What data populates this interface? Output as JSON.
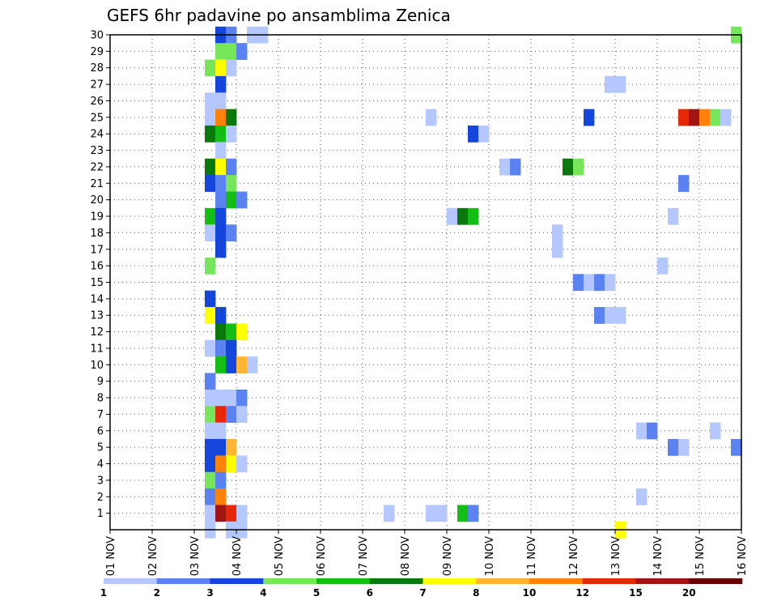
{
  "chart_data": {
    "type": "heatmap",
    "title": "GEFS 6hr padavine po ansamblima Zenica",
    "x_labels": [
      "01 NOV",
      "02 NOV",
      "03 NOV",
      "04 NOV",
      "05 NOV",
      "06 NOV",
      "07 NOV",
      "08 NOV",
      "09 NOV",
      "10 NOV",
      "11 NOV",
      "12 NOV",
      "13 NOV",
      "14 NOV",
      "15 NOV",
      "16 NOV"
    ],
    "y_labels": [
      "1",
      "2",
      "3",
      "4",
      "5",
      "6",
      "7",
      "8",
      "9",
      "10",
      "11",
      "12",
      "13",
      "14",
      "15",
      "16",
      "17",
      "18",
      "19",
      "20",
      "21",
      "22",
      "23",
      "24",
      "25",
      "26",
      "27",
      "28",
      "29",
      "30"
    ],
    "time_step_hours": 6,
    "ylim": [
      0,
      30
    ],
    "grid": true,
    "colorbar": {
      "bounds": [
        "1",
        "2",
        "3",
        "4",
        "5",
        "6",
        "7",
        "8",
        "10",
        "12",
        "15",
        "20"
      ],
      "colors": [
        "#b4c8ff",
        "#5a82f0",
        "#1446dc",
        "#78e65a",
        "#14be14",
        "#0a780a",
        "#ffff00",
        "#ffb432",
        "#ff820a",
        "#e6280a",
        "#a01414",
        "#640000"
      ]
    },
    "cells_format": "[member, step, class]; step = 6h periods since 01 NOV 00z; class = colorbar index",
    "cells": [
      [
        30,
        10,
        2
      ],
      [
        30,
        11,
        1
      ],
      [
        30,
        13,
        0
      ],
      [
        30,
        14,
        0
      ],
      [
        30,
        59,
        3
      ],
      [
        29,
        11,
        3
      ],
      [
        29,
        10,
        3
      ],
      [
        29,
        12,
        1
      ],
      [
        28,
        9,
        3
      ],
      [
        28,
        10,
        6
      ],
      [
        28,
        11,
        0
      ],
      [
        27,
        10,
        2
      ],
      [
        27,
        47,
        0
      ],
      [
        27,
        48,
        0
      ],
      [
        26,
        9,
        0
      ],
      [
        26,
        10,
        0
      ],
      [
        25,
        9,
        0
      ],
      [
        25,
        10,
        8
      ],
      [
        25,
        11,
        5
      ],
      [
        25,
        30,
        0
      ],
      [
        25,
        45,
        2
      ],
      [
        25,
        54,
        9
      ],
      [
        25,
        55,
        10
      ],
      [
        25,
        56,
        8
      ],
      [
        25,
        57,
        3
      ],
      [
        25,
        58,
        0
      ],
      [
        24,
        9,
        5
      ],
      [
        24,
        10,
        4
      ],
      [
        24,
        11,
        0
      ],
      [
        24,
        34,
        2
      ],
      [
        24,
        35,
        0
      ],
      [
        23,
        10,
        0
      ],
      [
        22,
        9,
        5
      ],
      [
        22,
        10,
        6
      ],
      [
        22,
        11,
        1
      ],
      [
        22,
        37,
        0
      ],
      [
        22,
        38,
        1
      ],
      [
        22,
        43,
        5
      ],
      [
        22,
        44,
        3
      ],
      [
        21,
        9,
        2
      ],
      [
        21,
        10,
        1
      ],
      [
        21,
        11,
        3
      ],
      [
        21,
        54,
        1
      ],
      [
        20,
        10,
        1
      ],
      [
        20,
        11,
        4
      ],
      [
        20,
        12,
        1
      ],
      [
        19,
        9,
        4
      ],
      [
        19,
        10,
        2
      ],
      [
        19,
        32,
        0
      ],
      [
        19,
        33,
        5
      ],
      [
        19,
        34,
        4
      ],
      [
        19,
        53,
        0
      ],
      [
        18,
        9,
        0
      ],
      [
        18,
        10,
        2
      ],
      [
        18,
        11,
        1
      ],
      [
        18,
        42,
        0
      ],
      [
        17,
        10,
        2
      ],
      [
        17,
        42,
        0
      ],
      [
        16,
        9,
        3
      ],
      [
        16,
        52,
        0
      ],
      [
        15,
        44,
        1
      ],
      [
        15,
        45,
        0
      ],
      [
        15,
        46,
        1
      ],
      [
        15,
        47,
        0
      ],
      [
        14,
        9,
        2
      ],
      [
        13,
        9,
        6
      ],
      [
        13,
        10,
        2
      ],
      [
        13,
        46,
        1
      ],
      [
        13,
        47,
        0
      ],
      [
        13,
        48,
        0
      ],
      [
        12,
        10,
        5
      ],
      [
        12,
        11,
        4
      ],
      [
        12,
        12,
        6
      ],
      [
        11,
        9,
        0
      ],
      [
        11,
        10,
        1
      ],
      [
        11,
        11,
        2
      ],
      [
        10,
        10,
        4
      ],
      [
        10,
        11,
        2
      ],
      [
        10,
        12,
        7
      ],
      [
        10,
        13,
        0
      ],
      [
        9,
        9,
        1
      ],
      [
        8,
        9,
        0
      ],
      [
        8,
        10,
        0
      ],
      [
        8,
        11,
        0
      ],
      [
        8,
        12,
        1
      ],
      [
        7,
        9,
        3
      ],
      [
        7,
        10,
        9
      ],
      [
        7,
        11,
        1
      ],
      [
        7,
        12,
        0
      ],
      [
        6,
        9,
        0
      ],
      [
        6,
        10,
        0
      ],
      [
        6,
        50,
        0
      ],
      [
        6,
        51,
        1
      ],
      [
        6,
        57,
        0
      ],
      [
        5,
        9,
        2
      ],
      [
        5,
        10,
        2
      ],
      [
        5,
        11,
        7
      ],
      [
        5,
        53,
        1
      ],
      [
        5,
        54,
        0
      ],
      [
        5,
        59,
        1
      ],
      [
        4,
        9,
        2
      ],
      [
        4,
        10,
        8
      ],
      [
        4,
        11,
        6
      ],
      [
        4,
        12,
        0
      ],
      [
        3,
        9,
        3
      ],
      [
        3,
        10,
        1
      ],
      [
        2,
        9,
        1
      ],
      [
        2,
        10,
        8
      ],
      [
        2,
        50,
        0
      ],
      [
        1,
        9,
        0
      ],
      [
        1,
        10,
        10
      ],
      [
        1,
        11,
        9
      ],
      [
        1,
        12,
        0
      ],
      [
        1,
        26,
        0
      ],
      [
        1,
        30,
        0
      ],
      [
        1,
        31,
        0
      ],
      [
        1,
        33,
        4
      ],
      [
        1,
        34,
        1
      ],
      [
        0,
        9,
        0
      ],
      [
        0,
        11,
        0
      ],
      [
        0,
        12,
        0
      ],
      [
        0,
        48,
        6
      ]
    ]
  }
}
